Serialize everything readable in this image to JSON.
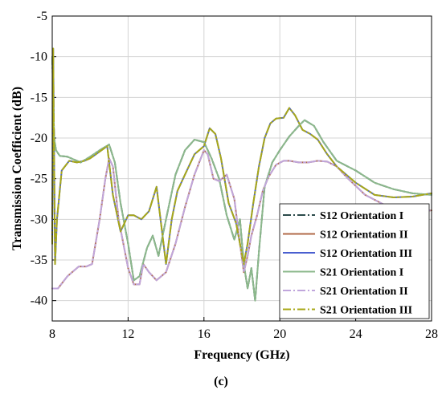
{
  "chart_data": {
    "type": "line",
    "xlabel": "Frequency (GHz)",
    "ylabel": "Transmission Coefficient (dB)",
    "xlim": [
      8,
      28
    ],
    "ylim": [
      -42.5,
      -5
    ],
    "xticks": [
      8,
      12,
      16,
      20,
      24,
      28
    ],
    "yticks": [
      -5,
      -10,
      -15,
      -20,
      -25,
      -30,
      -35,
      -40
    ],
    "grid": true,
    "legend_position": "bottom-right",
    "caption": "(c)",
    "series": [
      {
        "name": "S12 Orientation I",
        "color": "#2b4a4a",
        "dash": "10 3 2 3",
        "x": [
          8.0,
          8.1,
          8.2,
          8.4,
          8.8,
          9.5,
          10.0,
          10.5,
          11.0,
          11.3,
          11.6,
          12.0,
          12.3,
          12.6,
          13.0,
          13.3,
          13.6,
          14.0,
          14.5,
          15.0,
          15.5,
          16.0,
          16.4,
          16.8,
          17.2,
          17.6,
          17.9,
          18.1,
          18.3,
          18.5,
          18.7,
          18.9,
          19.2,
          19.6,
          20.0,
          20.5,
          21.0,
          21.3,
          21.8,
          22.3,
          23.0,
          24.0,
          25.0,
          26.0,
          27.0,
          28.0
        ],
        "values": [
          -10,
          -20,
          -21.5,
          -22.2,
          -22.3,
          -23.0,
          -22.3,
          -21.5,
          -20.8,
          -23.0,
          -28.0,
          -33.0,
          -37.5,
          -37.0,
          -33.5,
          -32.0,
          -34.5,
          -30.0,
          -24.5,
          -21.5,
          -20.2,
          -20.5,
          -22.5,
          -25.0,
          -29.5,
          -32.5,
          -30.0,
          -35.5,
          -38.5,
          -36.0,
          -40.0,
          -34.0,
          -26.0,
          -23.0,
          -21.5,
          -19.8,
          -18.5,
          -17.8,
          -18.5,
          -20.5,
          -22.8,
          -24.0,
          -25.5,
          -26.3,
          -26.8,
          -27.0
        ]
      },
      {
        "name": "S12 Orientation II",
        "color": "#b06a48",
        "dash": "",
        "x": [
          8.0,
          8.3,
          8.8,
          9.4,
          9.8,
          10.1,
          10.5,
          10.8,
          11.0,
          11.2,
          11.5,
          12.0,
          12.3,
          12.6,
          12.8,
          13.1,
          13.5,
          14.0,
          14.5,
          15.0,
          15.5,
          16.0,
          16.2,
          16.5,
          16.8,
          17.2,
          17.6,
          17.9,
          18.1,
          18.3,
          18.5,
          18.8,
          19.1,
          19.4,
          19.8,
          20.2,
          20.5,
          21.0,
          21.5,
          22.0,
          22.5,
          23.0,
          23.6,
          24.5,
          25.5,
          26.5,
          27.3,
          28.0
        ],
        "values": [
          -38.5,
          -38.5,
          -37.0,
          -35.8,
          -35.8,
          -35.5,
          -30.0,
          -25.0,
          -22.5,
          -23.5,
          -30.0,
          -36.0,
          -38.0,
          -38.0,
          -35.5,
          -36.5,
          -37.5,
          -36.5,
          -33.0,
          -28.5,
          -24.5,
          -21.5,
          -22.0,
          -25.0,
          -25.3,
          -24.5,
          -27.5,
          -33.0,
          -36.5,
          -34.5,
          -32.0,
          -29.5,
          -26.5,
          -24.8,
          -23.3,
          -22.8,
          -22.8,
          -23.0,
          -23.0,
          -22.8,
          -22.9,
          -23.5,
          -25.0,
          -27.0,
          -28.2,
          -28.8,
          -28.9,
          -28.9
        ]
      },
      {
        "name": "S12 Orientation III",
        "color": "#4a5fd0",
        "dash": "",
        "x": [
          8.0,
          8.05,
          8.1,
          8.15,
          8.25,
          8.5,
          8.9,
          9.3,
          9.7,
          10.0,
          10.3,
          10.6,
          10.9,
          11.2,
          11.6,
          12.0,
          12.3,
          12.7,
          13.1,
          13.5,
          14.0,
          14.3,
          14.6,
          15.0,
          15.5,
          16.0,
          16.3,
          16.6,
          16.9,
          17.3,
          17.7,
          17.9,
          18.1,
          18.3,
          18.6,
          18.9,
          19.2,
          19.5,
          19.8,
          20.2,
          20.5,
          20.8,
          21.2,
          21.6,
          22.0,
          22.5,
          23.0,
          24.0,
          25.0,
          26.0,
          27.0,
          28.0
        ],
        "values": [
          -33.0,
          -9.0,
          -23.0,
          -35.5,
          -30.0,
          -24.0,
          -22.8,
          -23.0,
          -22.8,
          -22.5,
          -22.0,
          -21.5,
          -21.0,
          -27.0,
          -31.5,
          -29.5,
          -29.5,
          -30.0,
          -29.0,
          -26.0,
          -35.5,
          -30.0,
          -26.5,
          -24.5,
          -22.0,
          -21.0,
          -18.8,
          -19.5,
          -22.5,
          -28.0,
          -30.5,
          -33.0,
          -35.5,
          -33.0,
          -28.0,
          -23.5,
          -20.0,
          -18.2,
          -17.6,
          -17.5,
          -16.3,
          -17.2,
          -19.0,
          -19.5,
          -20.2,
          -22.0,
          -23.5,
          -25.5,
          -27.0,
          -27.3,
          -27.2,
          -26.8
        ]
      },
      {
        "name": "S21 Orientation I",
        "color": "#8cb88c",
        "dash": "",
        "x": [
          8.0,
          8.1,
          8.2,
          8.4,
          8.8,
          9.5,
          10.0,
          10.5,
          11.0,
          11.3,
          11.6,
          12.0,
          12.3,
          12.6,
          13.0,
          13.3,
          13.6,
          14.0,
          14.5,
          15.0,
          15.5,
          16.0,
          16.4,
          16.8,
          17.2,
          17.6,
          17.9,
          18.1,
          18.3,
          18.5,
          18.7,
          18.9,
          19.2,
          19.6,
          20.0,
          20.5,
          21.0,
          21.3,
          21.8,
          22.3,
          23.0,
          24.0,
          25.0,
          26.0,
          27.0,
          28.0
        ],
        "values": [
          -10,
          -20,
          -21.5,
          -22.2,
          -22.3,
          -23.0,
          -22.3,
          -21.5,
          -20.8,
          -23.0,
          -28.0,
          -33.0,
          -37.5,
          -37.0,
          -33.5,
          -32.0,
          -34.5,
          -30.0,
          -24.5,
          -21.5,
          -20.2,
          -20.5,
          -22.5,
          -25.0,
          -29.5,
          -32.5,
          -30.0,
          -35.5,
          -38.5,
          -36.0,
          -40.0,
          -34.0,
          -26.0,
          -23.0,
          -21.5,
          -19.8,
          -18.5,
          -17.8,
          -18.5,
          -20.5,
          -22.8,
          -24.0,
          -25.5,
          -26.3,
          -26.8,
          -27.0
        ]
      },
      {
        "name": "S21 Orientation II",
        "color": "#c0a6dc",
        "dash": "10 3 2 3",
        "x": [
          8.0,
          8.3,
          8.8,
          9.4,
          9.8,
          10.1,
          10.5,
          10.8,
          11.0,
          11.2,
          11.5,
          12.0,
          12.3,
          12.6,
          12.8,
          13.1,
          13.5,
          14.0,
          14.5,
          15.0,
          15.5,
          16.0,
          16.2,
          16.5,
          16.8,
          17.2,
          17.6,
          17.9,
          18.1,
          18.3,
          18.5,
          18.8,
          19.1,
          19.4,
          19.8,
          20.2,
          20.5,
          21.0,
          21.5,
          22.0,
          22.5,
          23.0,
          23.6,
          24.5,
          25.5,
          26.5,
          27.3,
          28.0
        ],
        "values": [
          -38.5,
          -38.5,
          -37.0,
          -35.8,
          -35.8,
          -35.5,
          -30.0,
          -25.0,
          -22.5,
          -23.5,
          -30.0,
          -36.0,
          -38.0,
          -38.0,
          -35.5,
          -36.5,
          -37.5,
          -36.5,
          -33.0,
          -28.5,
          -24.5,
          -21.5,
          -22.0,
          -25.0,
          -25.3,
          -24.5,
          -27.5,
          -33.0,
          -36.5,
          -34.5,
          -32.0,
          -29.5,
          -26.5,
          -24.8,
          -23.3,
          -22.8,
          -22.8,
          -23.0,
          -23.0,
          -22.8,
          -22.9,
          -23.5,
          -25.0,
          -27.0,
          -28.2,
          -28.8,
          -28.9,
          -28.9
        ]
      },
      {
        "name": "S21 Orientation III",
        "color": "#a8a818",
        "dash": "10 3 2 3",
        "x": [
          8.0,
          8.05,
          8.1,
          8.15,
          8.25,
          8.5,
          8.9,
          9.3,
          9.7,
          10.0,
          10.3,
          10.6,
          10.9,
          11.2,
          11.6,
          12.0,
          12.3,
          12.7,
          13.1,
          13.5,
          14.0,
          14.3,
          14.6,
          15.0,
          15.5,
          16.0,
          16.3,
          16.6,
          16.9,
          17.3,
          17.7,
          17.9,
          18.1,
          18.3,
          18.6,
          18.9,
          19.2,
          19.5,
          19.8,
          20.2,
          20.5,
          20.8,
          21.2,
          21.6,
          22.0,
          22.5,
          23.0,
          24.0,
          25.0,
          26.0,
          27.0,
          28.0
        ],
        "values": [
          -33.0,
          -9.0,
          -23.0,
          -35.5,
          -30.0,
          -24.0,
          -22.8,
          -23.0,
          -22.8,
          -22.5,
          -22.0,
          -21.5,
          -21.0,
          -27.0,
          -31.5,
          -29.5,
          -29.5,
          -30.0,
          -29.0,
          -26.0,
          -35.5,
          -30.0,
          -26.5,
          -24.5,
          -22.0,
          -21.0,
          -18.8,
          -19.5,
          -22.5,
          -28.0,
          -30.5,
          -33.0,
          -35.5,
          -33.0,
          -28.0,
          -23.5,
          -20.0,
          -18.2,
          -17.6,
          -17.5,
          -16.3,
          -17.2,
          -19.0,
          -19.5,
          -20.2,
          -22.0,
          -23.5,
          -25.5,
          -27.0,
          -27.3,
          -27.2,
          -26.8
        ]
      }
    ]
  }
}
